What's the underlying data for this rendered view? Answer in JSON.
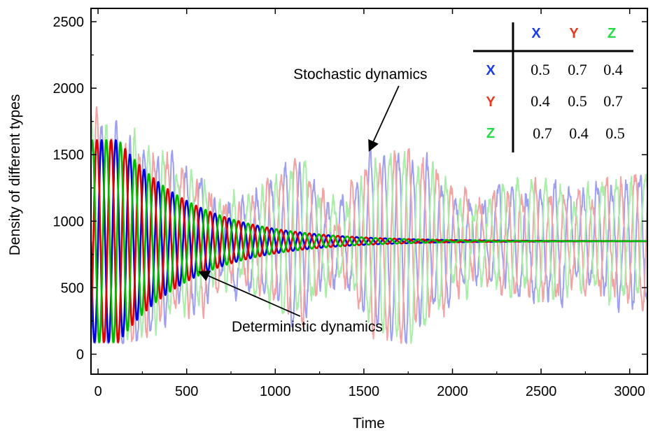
{
  "chart_data": {
    "type": "line",
    "xlabel": "Time",
    "ylabel": "Density of different types",
    "xlim": [
      -40,
      3100
    ],
    "ylim": [
      -150,
      2600
    ],
    "xticks": [
      0,
      500,
      1000,
      1500,
      2000,
      2500,
      3000
    ],
    "yticks": [
      0,
      500,
      1000,
      1500,
      2000,
      2500
    ],
    "grid": false,
    "equilibrium": 850,
    "series": [
      {
        "name": "X",
        "kind": "deterministic",
        "color": "#0000dd",
        "phase_deg": 0
      },
      {
        "name": "Y",
        "kind": "deterministic",
        "color": "#dd0000",
        "phase_deg": 120
      },
      {
        "name": "Z",
        "kind": "deterministic",
        "color": "#00bb00",
        "phase_deg": 240
      },
      {
        "name": "X",
        "kind": "stochastic",
        "color": "#9f9ff0",
        "phase_deg": 0
      },
      {
        "name": "Y",
        "kind": "stochastic",
        "color": "#f4a3a3",
        "phase_deg": 120
      },
      {
        "name": "Z",
        "kind": "stochastic",
        "color": "#a8eea8",
        "phase_deg": 240
      }
    ],
    "deterministic": {
      "period": 80,
      "start_amplitude": 1000,
      "decay_time": 420
    },
    "stochastic": {
      "period": 80,
      "envelope": [
        [
          0,
          900
        ],
        [
          300,
          650
        ],
        [
          600,
          400
        ],
        [
          800,
          280
        ],
        [
          1000,
          420
        ],
        [
          1100,
          560
        ],
        [
          1250,
          380
        ],
        [
          1350,
          220
        ],
        [
          1450,
          380
        ],
        [
          1550,
          620
        ],
        [
          1700,
          680
        ],
        [
          1850,
          580
        ],
        [
          2000,
          360
        ],
        [
          2150,
          250
        ],
        [
          2300,
          380
        ],
        [
          2450,
          420
        ],
        [
          2600,
          380
        ],
        [
          2750,
          330
        ],
        [
          2900,
          420
        ],
        [
          3100,
          480
        ]
      ]
    },
    "annotations": [
      {
        "text": "Stochastic dynamics",
        "x": 1480,
        "y": 2070,
        "arrow_to": [
          1530,
          1530
        ]
      },
      {
        "text": "Deterministic dynamics",
        "x": 1180,
        "y": 170,
        "arrow_to": [
          570,
          620
        ]
      }
    ],
    "inset_table": {
      "col_headers": [
        "X",
        "Y",
        "Z"
      ],
      "row_headers": [
        "X",
        "Y",
        "Z"
      ],
      "header_colors": [
        "#1a3de8",
        "#e83a1a",
        "#22dd44"
      ],
      "cells": [
        [
          "0.5",
          "0.7",
          "0.4"
        ],
        [
          "0.4",
          "0.5",
          "0.7"
        ],
        [
          "0.7",
          "0.4",
          "0.5"
        ]
      ]
    }
  }
}
